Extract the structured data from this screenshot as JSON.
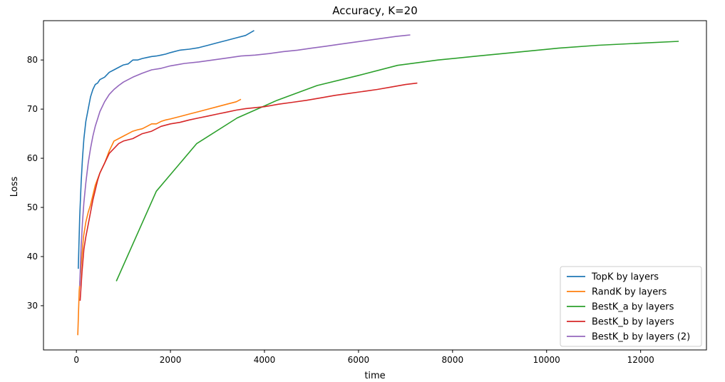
{
  "chart_data": {
    "type": "line",
    "title": "Accuracy, K=20",
    "xlabel": "time",
    "ylabel": "Loss",
    "xlim": [
      -700,
      13400
    ],
    "ylim": [
      21,
      88
    ],
    "xticks": [
      0,
      2000,
      4000,
      6000,
      8000,
      10000,
      12000
    ],
    "yticks": [
      30,
      40,
      50,
      60,
      70,
      80
    ],
    "grid": false,
    "legend_position": "bottom-right",
    "series": [
      {
        "name": "TopK by layers",
        "color": "#1f77b4",
        "x": [
          40,
          70,
          100,
          130,
          160,
          200,
          250,
          300,
          350,
          400,
          450,
          500,
          600,
          700,
          800,
          900,
          1000,
          1100,
          1200,
          1300,
          1400,
          1500,
          1600,
          1700,
          1800,
          1900,
          2000,
          2200,
          2400,
          2600,
          2800,
          3000,
          3200,
          3400,
          3600,
          3780
        ],
        "y": [
          37.5,
          48,
          55,
          60,
          64,
          67.5,
          70,
          72.5,
          74,
          75,
          75.3,
          76,
          76.5,
          77.5,
          78,
          78.5,
          79,
          79.2,
          80,
          80,
          80.3,
          80.5,
          80.7,
          80.8,
          81,
          81.2,
          81.5,
          82,
          82.2,
          82.5,
          83,
          83.5,
          84,
          84.5,
          85,
          86
        ]
      },
      {
        "name": "RandK by layers",
        "color": "#ff7f0e",
        "x": [
          30,
          60,
          100,
          150,
          200,
          250,
          300,
          400,
          500,
          600,
          700,
          800,
          900,
          1000,
          1100,
          1200,
          1300,
          1400,
          1500,
          1600,
          1700,
          1800,
          1900,
          2000,
          2200,
          2400,
          2600,
          2800,
          3000,
          3200,
          3400,
          3500
        ],
        "y": [
          24,
          33,
          38,
          44,
          47,
          49,
          50.5,
          54.5,
          57,
          59,
          61.5,
          63.5,
          64,
          64.5,
          65,
          65.5,
          65.8,
          66,
          66.5,
          67,
          67,
          67.5,
          67.8,
          68,
          68.5,
          69,
          69.5,
          70,
          70.5,
          71,
          71.5,
          72
        ]
      },
      {
        "name": "BestK_a by layers",
        "color": "#2ca02c",
        "x": [
          850,
          1700,
          2560,
          3420,
          4270,
          5120,
          5980,
          6830,
          7690,
          8540,
          9400,
          10250,
          11100,
          11960,
          12810
        ],
        "y": [
          35,
          53.3,
          63,
          68.2,
          71.8,
          74.8,
          76.8,
          78.9,
          80,
          80.8,
          81.6,
          82.4,
          83,
          83.4,
          83.8
        ]
      },
      {
        "name": "BestK_b by layers",
        "color": "#d62728",
        "x": [
          80,
          120,
          160,
          200,
          250,
          300,
          350,
          400,
          450,
          500,
          600,
          700,
          800,
          900,
          1000,
          1200,
          1400,
          1600,
          1800,
          2000,
          2200,
          2400,
          2600,
          2800,
          3000,
          3200,
          3400,
          3600,
          3800,
          4000,
          4300,
          4600,
          4900,
          5200,
          5500,
          5800,
          6100,
          6400,
          6700,
          7000,
          7250
        ],
        "y": [
          31,
          37,
          41.5,
          44,
          46.5,
          49,
          51.5,
          53.5,
          55.5,
          57,
          59,
          61,
          62,
          63,
          63.5,
          64,
          65,
          65.5,
          66.5,
          67,
          67.3,
          67.8,
          68.2,
          68.6,
          69,
          69.4,
          69.8,
          70.1,
          70.3,
          70.5,
          71,
          71.4,
          71.8,
          72.3,
          72.8,
          73.2,
          73.6,
          74,
          74.5,
          75,
          75.3
        ]
      },
      {
        "name": "BestK_b by layers (2)",
        "color": "#9467bd",
        "x": [
          70,
          100,
          130,
          160,
          200,
          250,
          300,
          350,
          400,
          450,
          500,
          600,
          700,
          800,
          900,
          1000,
          1200,
          1400,
          1600,
          1800,
          2000,
          2300,
          2600,
          2900,
          3200,
          3500,
          3800,
          4100,
          4400,
          4700,
          5000,
          5300,
          5600,
          5900,
          6200,
          6500,
          6800,
          7000,
          7100
        ],
        "y": [
          34,
          42,
          47,
          51,
          55,
          59,
          62,
          64.5,
          66.5,
          68,
          69.5,
          71.5,
          73,
          74,
          74.8,
          75.5,
          76.5,
          77.3,
          78,
          78.3,
          78.8,
          79.3,
          79.6,
          80,
          80.4,
          80.8,
          81,
          81.3,
          81.7,
          82,
          82.4,
          82.8,
          83.2,
          83.6,
          84,
          84.4,
          84.8,
          85,
          85.1
        ]
      }
    ]
  }
}
